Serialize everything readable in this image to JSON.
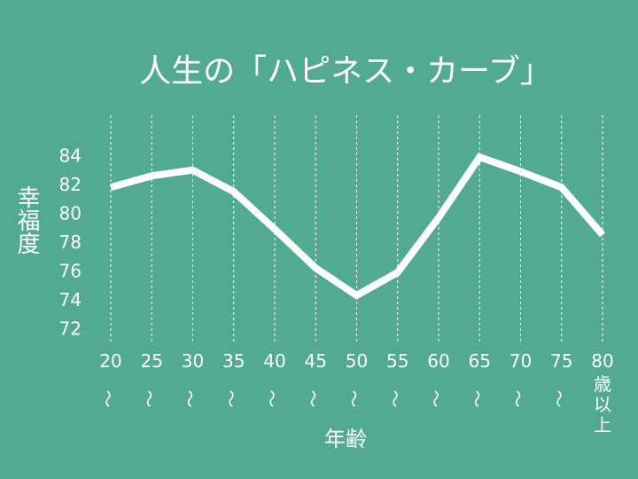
{
  "chart_data": {
    "type": "line",
    "title": "人生の「ハピネス・カーブ」",
    "y_label": "幸福度",
    "x_label": "年齢",
    "categories": [
      "20〜",
      "25〜",
      "30〜",
      "35〜",
      "40〜",
      "45〜",
      "50〜",
      "55〜",
      "60〜",
      "65〜",
      "70〜",
      "75〜",
      "80歳以上"
    ],
    "values": [
      81.9,
      82.7,
      83.1,
      81.6,
      79.0,
      76.3,
      74.4,
      76.0,
      79.8,
      84.0,
      83.0,
      81.9,
      78.6
    ],
    "color": "#ffffff",
    "ylim": [
      71.2,
      86.9
    ],
    "yticks": [
      72,
      74,
      76,
      78,
      80,
      82,
      84
    ],
    "grid": true
  }
}
